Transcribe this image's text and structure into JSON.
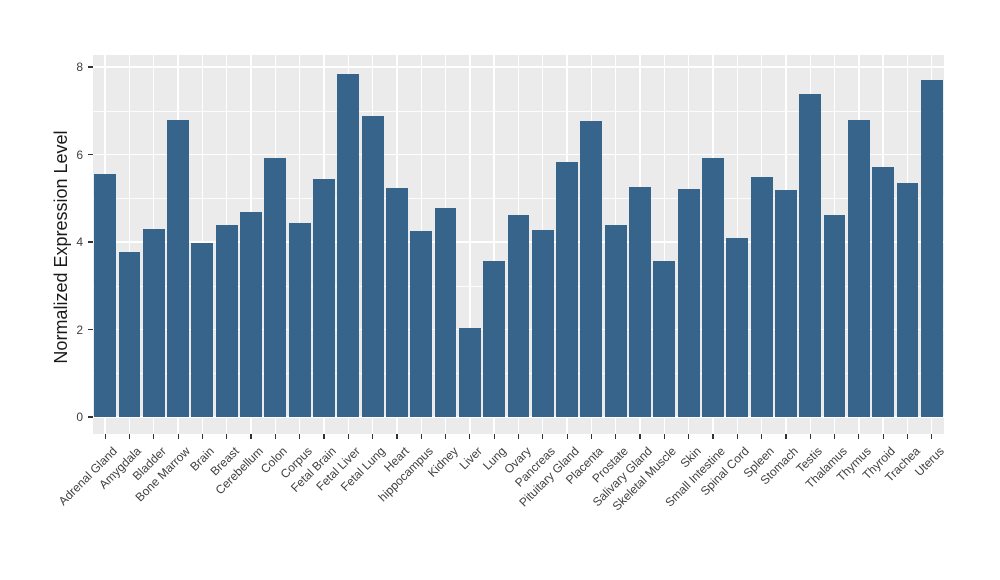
{
  "chart_data": {
    "type": "bar",
    "title": "",
    "xlabel": "",
    "ylabel": "Normalized Expression Level",
    "categories": [
      "Adrenal Gland",
      "Amygdala",
      "Bladder",
      "Bone Marrow",
      "Brain",
      "Breast",
      "Cerebellum",
      "Colon",
      "Corpus",
      "Fetal Brain",
      "Fetal Liver",
      "Fetal Lung",
      "Heart",
      "hippocampus",
      "Kidney",
      "Liver",
      "Lung",
      "Ovary",
      "Pancreas",
      "Pituitary Gland",
      "Placenta",
      "Prostate",
      "Salivary Gland",
      "Skeletal Muscle",
      "Skin",
      "Small Intestine",
      "Spinal Cord",
      "Spleen",
      "Stomach",
      "Testis",
      "Thalamus",
      "Thymus",
      "Thyroid",
      "Trachea",
      "Uterus"
    ],
    "values": [
      5.56,
      3.77,
      4.3,
      6.79,
      3.98,
      4.4,
      4.69,
      5.92,
      4.43,
      5.43,
      7.83,
      6.87,
      5.23,
      4.26,
      4.78,
      2.03,
      3.56,
      4.61,
      4.28,
      5.83,
      6.76,
      4.38,
      5.26,
      3.57,
      5.22,
      5.93,
      4.1,
      5.49,
      5.2,
      7.39,
      4.62,
      6.78,
      5.71,
      5.34,
      7.71
    ],
    "ylim": [
      0,
      8
    ],
    "yticks": [
      0,
      2,
      4,
      6,
      8
    ],
    "yticks_minor": [
      1,
      3,
      5,
      7
    ],
    "grid": "on",
    "legend": "none",
    "colors": {
      "bar": "#36648B",
      "panel_background": "#EBEBEB",
      "gridline": "#FFFFFF",
      "tick_text": "#404040",
      "axis_title_text": "#1A1A1A",
      "tick_mark": "#333333"
    }
  }
}
